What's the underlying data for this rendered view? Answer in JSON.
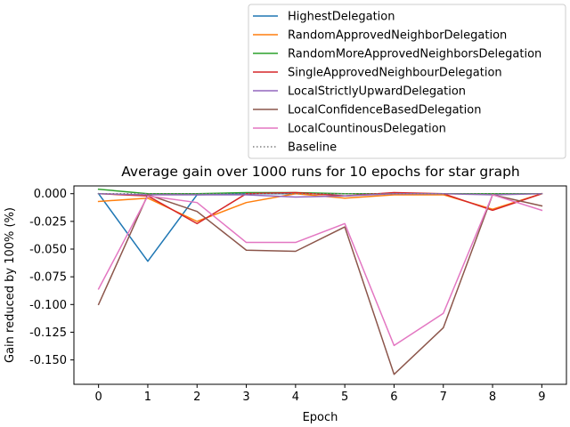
{
  "chart_data": {
    "type": "line",
    "title": "Average gain over 1000 runs for 10 epochs for star graph",
    "xlabel": "Epoch",
    "ylabel": "Gain reduced by 100% (%)",
    "xlim": [
      -0.5,
      9.5
    ],
    "ylim": [
      -0.172,
      0.007
    ],
    "xticks": [
      "0",
      "1",
      "2",
      "3",
      "4",
      "5",
      "6",
      "7",
      "8",
      "9"
    ],
    "yticks": [
      "0.000",
      "-0.025",
      "-0.050",
      "-0.075",
      "-0.100",
      "-0.125",
      "-0.150"
    ],
    "grid": false,
    "legend_position": "upper-right, above plot",
    "x": [
      0,
      1,
      2,
      3,
      4,
      5,
      6,
      7,
      8,
      9
    ],
    "series": [
      {
        "name": "HighestDelegation",
        "color": "#1f77b4",
        "style": "solid",
        "values": [
          0.0,
          -0.061,
          -0.001,
          0.0,
          0.0,
          0.0,
          0.0,
          0.0,
          0.0,
          0.0
        ]
      },
      {
        "name": "RandomApprovedNeighborDelegation",
        "color": "#ff7f0e",
        "style": "solid",
        "values": [
          -0.007,
          -0.004,
          -0.025,
          -0.008,
          0.0,
          -0.004,
          -0.001,
          -0.001,
          -0.014,
          0.0
        ]
      },
      {
        "name": "RandomMoreApprovedNeighborsDelegation",
        "color": "#2ca02c",
        "style": "solid",
        "values": [
          0.004,
          0.0,
          0.0,
          0.001,
          0.001,
          0.0,
          0.0,
          0.0,
          0.0,
          0.0
        ]
      },
      {
        "name": "SingleApprovedNeighbourDelegation",
        "color": "#d62728",
        "style": "solid",
        "values": [
          0.0,
          -0.002,
          -0.027,
          0.0,
          0.001,
          -0.002,
          0.001,
          0.0,
          -0.015,
          0.0
        ]
      },
      {
        "name": "LocalStrictlyUpwardDelegation",
        "color": "#9467bd",
        "style": "solid",
        "values": [
          0.0,
          -0.001,
          -0.001,
          -0.001,
          -0.003,
          -0.002,
          0.0,
          0.0,
          -0.001,
          0.0
        ]
      },
      {
        "name": "LocalConfidenceBasedDelegation",
        "color": "#8c564b",
        "style": "solid",
        "values": [
          -0.1,
          -0.001,
          -0.016,
          -0.051,
          -0.052,
          -0.03,
          -0.163,
          -0.121,
          -0.001,
          -0.011
        ]
      },
      {
        "name": "LocalCountinousDelegation",
        "color": "#e377c2",
        "style": "solid",
        "values": [
          -0.086,
          -0.002,
          -0.008,
          -0.044,
          -0.044,
          -0.027,
          -0.137,
          -0.108,
          -0.001,
          -0.015
        ]
      },
      {
        "name": "Baseline",
        "color": "#7f7f7f",
        "style": "dotted",
        "values": [
          0,
          0,
          0,
          0,
          0,
          0,
          0,
          0,
          0,
          0
        ]
      }
    ]
  }
}
